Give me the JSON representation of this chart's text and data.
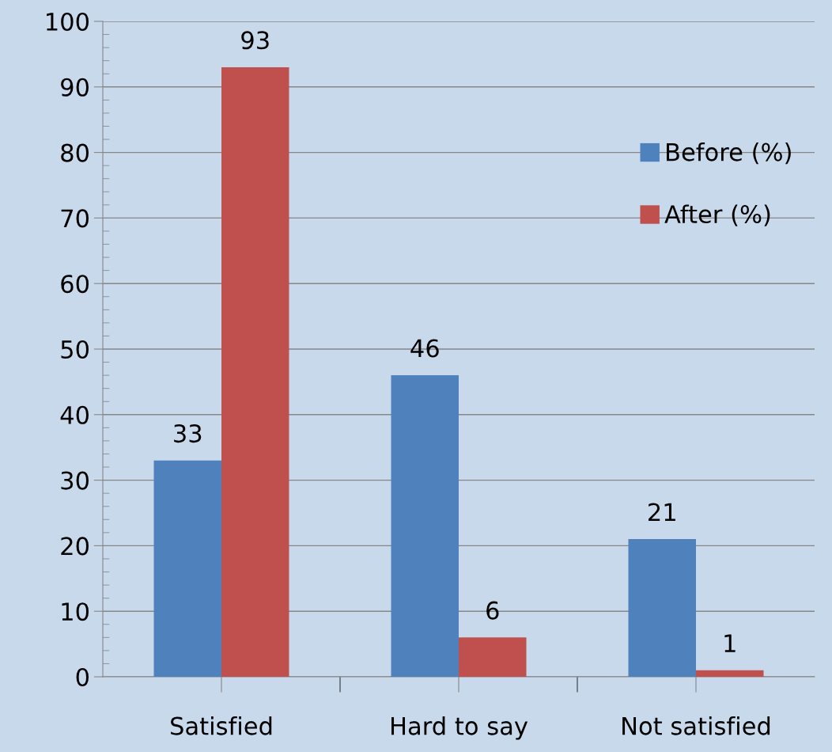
{
  "chart_data": {
    "type": "bar",
    "categories": [
      "Satisfied",
      "Hard to say",
      "Not satisfied"
    ],
    "series": [
      {
        "name": "Before (%)",
        "color": "#4f81bd",
        "values": [
          33,
          46,
          21
        ]
      },
      {
        "name": "After (%)",
        "color": "#c0504d",
        "values": [
          93,
          6,
          1
        ]
      }
    ],
    "ylim": [
      0,
      100
    ],
    "yticks": [
      0,
      10,
      20,
      30,
      40,
      50,
      60,
      70,
      80,
      90,
      100
    ],
    "grid": "y",
    "legend": "right",
    "data_labels": true
  }
}
